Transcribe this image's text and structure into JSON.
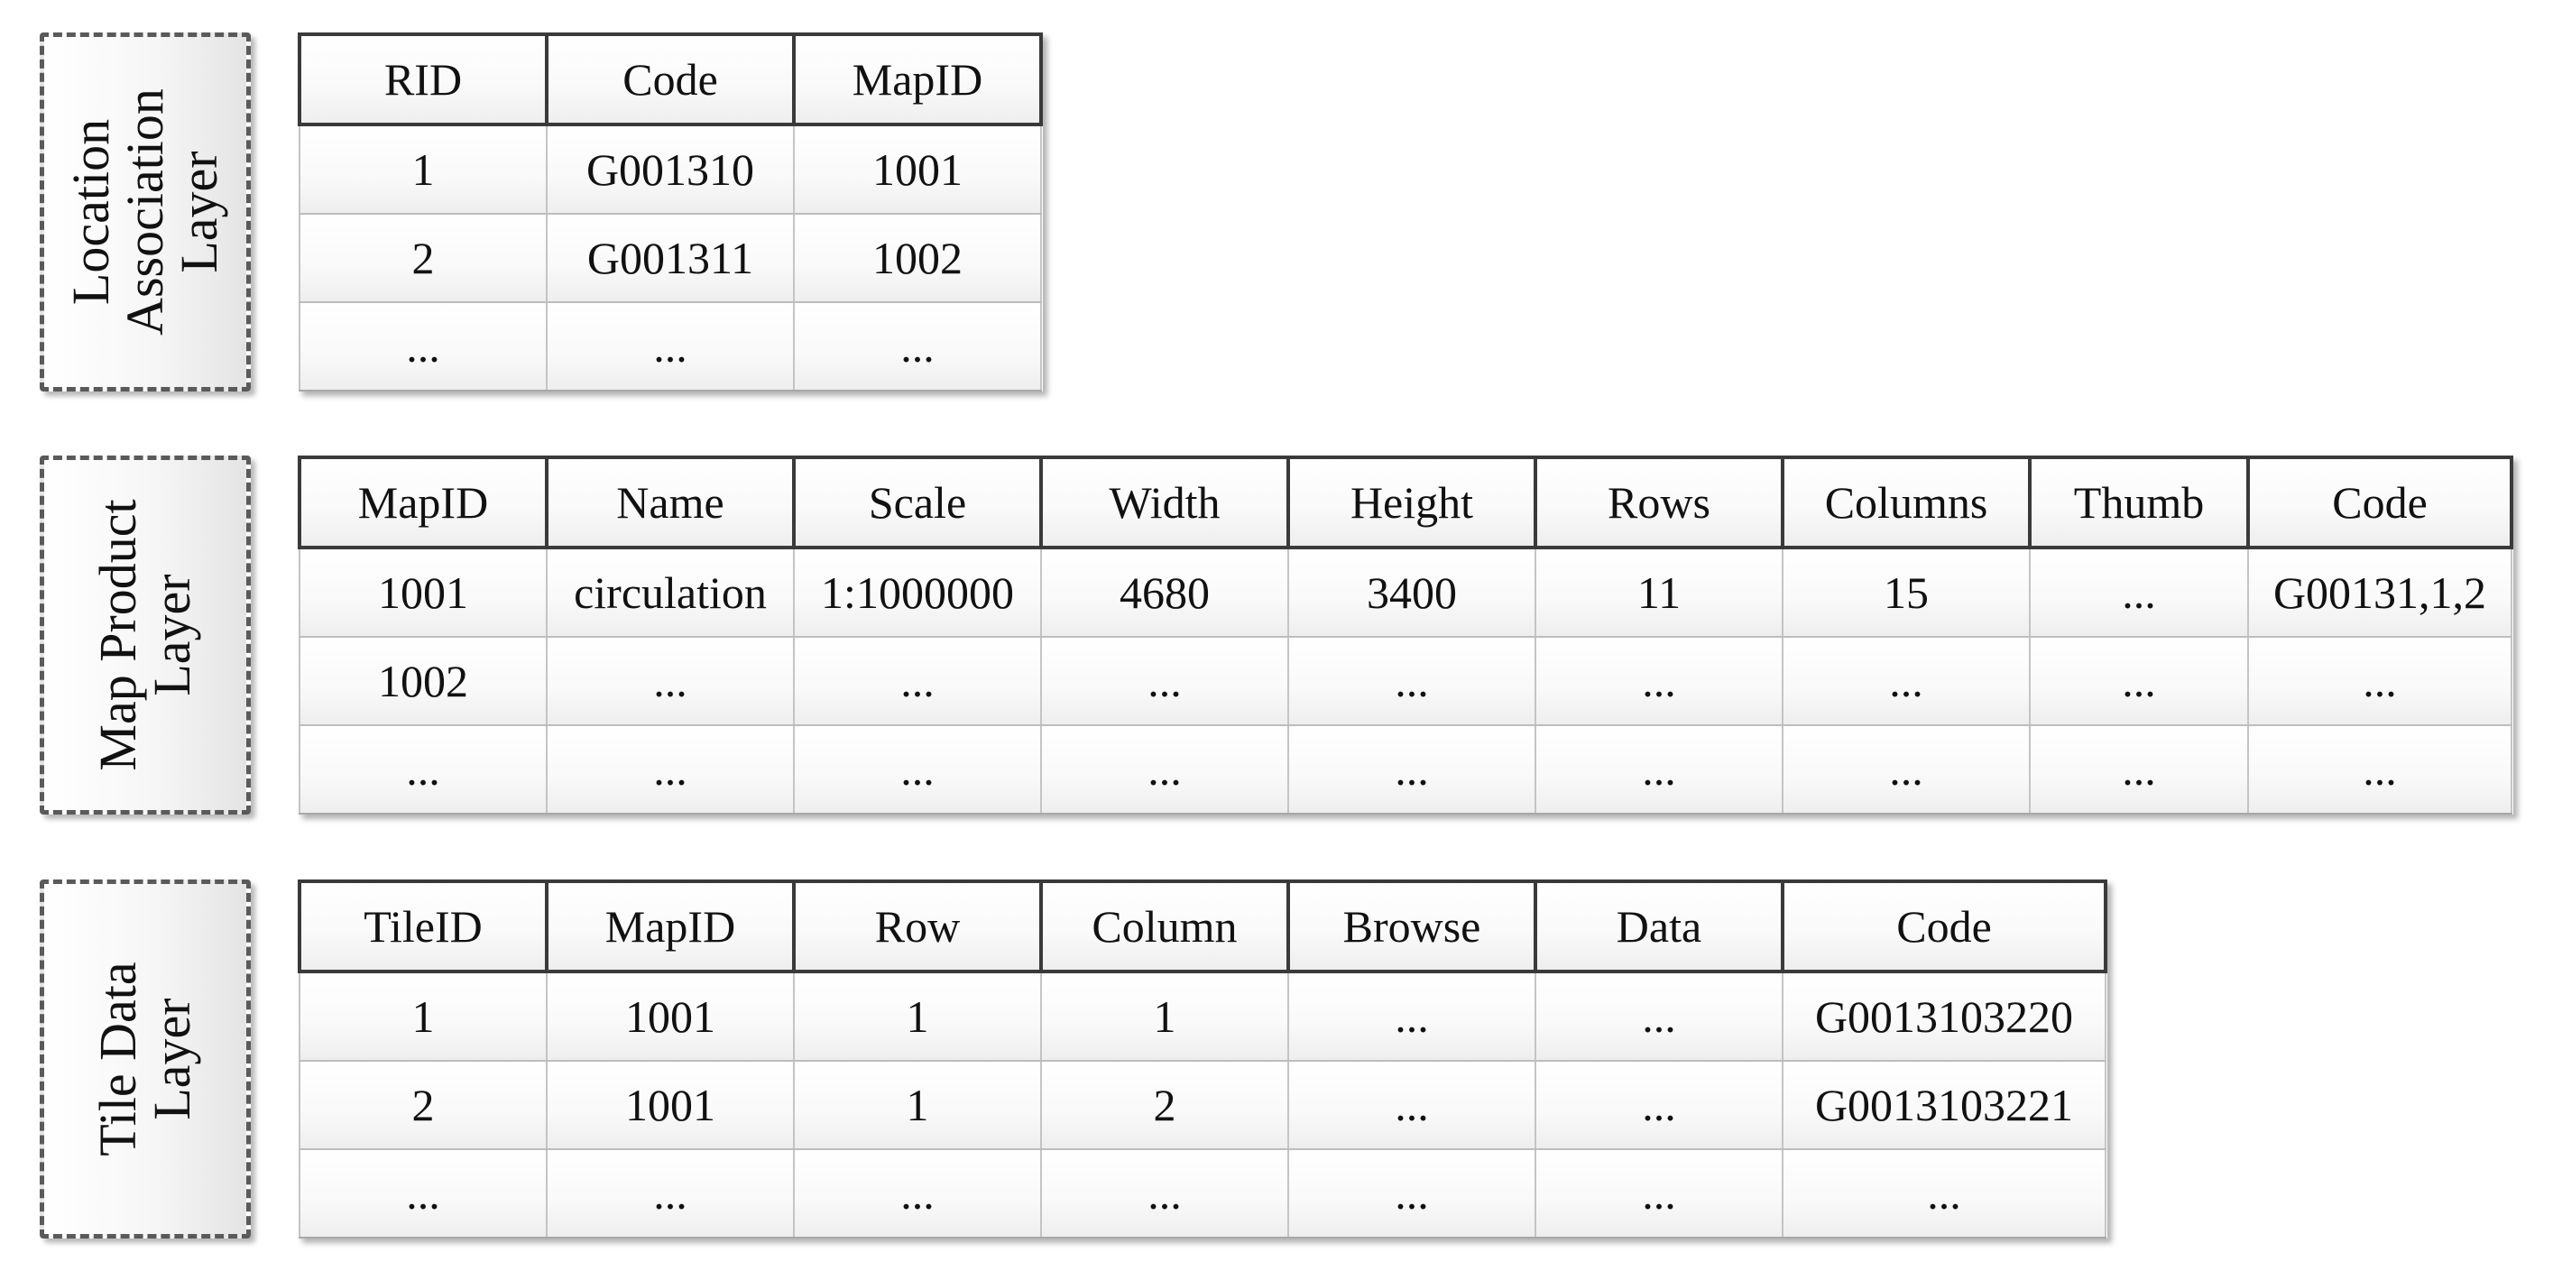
{
  "layers": [
    {
      "id": "location",
      "label": "Location\nAssociation\nLayer",
      "columns": [
        "RID",
        "Code",
        "MapID"
      ],
      "rows": [
        [
          "1",
          "G001310",
          "1001"
        ],
        [
          "2",
          "G001311",
          "1002"
        ],
        [
          "...",
          "...",
          "..."
        ]
      ]
    },
    {
      "id": "map",
      "label": "Map Product\nLayer",
      "columns": [
        "MapID",
        "Name",
        "Scale",
        "Width",
        "Height",
        "Rows",
        "Columns",
        "Thumb",
        "Code"
      ],
      "rows": [
        [
          "1001",
          "circulation",
          "1:1000000",
          "4680",
          "3400",
          "11",
          "15",
          "...",
          "G00131,1,2"
        ],
        [
          "1002",
          "...",
          "...",
          "...",
          "...",
          "...",
          "...",
          "...",
          "..."
        ],
        [
          "...",
          "...",
          "...",
          "...",
          "...",
          "...",
          "...",
          "...",
          "..."
        ]
      ]
    },
    {
      "id": "tile",
      "label": "Tile Data\nLayer",
      "columns": [
        "TileID",
        "MapID",
        "Row",
        "Column",
        "Browse",
        "Data",
        "Code"
      ],
      "rows": [
        [
          "1",
          "1001",
          "1",
          "1",
          "...",
          "...",
          "G0013103220"
        ],
        [
          "2",
          "1001",
          "1",
          "2",
          "...",
          "...",
          "G0013103221"
        ],
        [
          "...",
          "...",
          "...",
          "...",
          "...",
          "...",
          "..."
        ]
      ]
    }
  ]
}
